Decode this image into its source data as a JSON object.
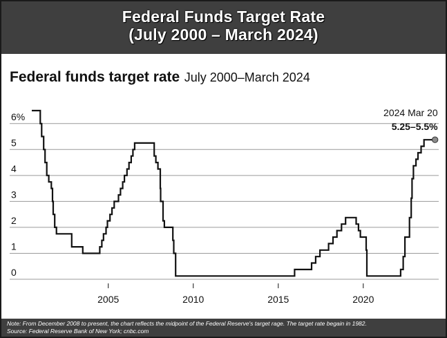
{
  "banner": {
    "line1": "Federal Funds Target Rate",
    "line2": "(July 2000 – March 2024)"
  },
  "heading": {
    "title": "Federal funds target rate",
    "subtitle": "July 2000–March 2024"
  },
  "notes": {
    "note": "Note: From December 2008 to present, the chart reflects the midpoint of the Federal Reserve's target rage. The target rate begain in 1982.",
    "source": "Source: Federal Reserve Bank of New York; cnbc.com"
  },
  "colors": {
    "line": "#111111",
    "grid": "#9a9a9a",
    "marker": "#8a8a8a",
    "banner": "#3f3f3f"
  },
  "chart_data": {
    "type": "line",
    "title": "Federal funds target rate",
    "subtitle": "July 2000–March 2024",
    "xlim": [
      2000.5,
      2024.6
    ],
    "ylim": [
      0,
      6.5
    ],
    "x_ticks": [
      2005,
      2010,
      2015,
      2020
    ],
    "x_tick_labels": [
      "2005",
      "2010",
      "2015",
      "2020"
    ],
    "y_ticks": [
      0,
      1,
      2,
      3,
      4,
      5,
      6
    ],
    "y_tick_labels": [
      "0",
      "1",
      "2",
      "3",
      "4",
      "5",
      "6%"
    ],
    "grid": "horizontal",
    "annotation": {
      "x": 2024.22,
      "y": 5.375,
      "date": "2024 Mar 20",
      "value": "5.25–5.5%"
    },
    "series": [
      {
        "step": true,
        "points": [
          [
            2000.5,
            6.5
          ],
          [
            2001.0,
            6.0
          ],
          [
            2001.08,
            5.5
          ],
          [
            2001.2,
            5.0
          ],
          [
            2001.28,
            4.5
          ],
          [
            2001.38,
            4.0
          ],
          [
            2001.5,
            3.75
          ],
          [
            2001.65,
            3.5
          ],
          [
            2001.72,
            3.0
          ],
          [
            2001.76,
            2.5
          ],
          [
            2001.85,
            2.0
          ],
          [
            2001.95,
            1.75
          ],
          [
            2002.85,
            1.25
          ],
          [
            2003.5,
            1.0
          ],
          [
            2004.5,
            1.25
          ],
          [
            2004.62,
            1.5
          ],
          [
            2004.72,
            1.75
          ],
          [
            2004.87,
            2.0
          ],
          [
            2004.95,
            2.25
          ],
          [
            2005.1,
            2.5
          ],
          [
            2005.22,
            2.75
          ],
          [
            2005.35,
            3.0
          ],
          [
            2005.6,
            3.25
          ],
          [
            2005.72,
            3.5
          ],
          [
            2005.85,
            3.75
          ],
          [
            2005.95,
            4.0
          ],
          [
            2006.1,
            4.25
          ],
          [
            2006.22,
            4.5
          ],
          [
            2006.35,
            4.75
          ],
          [
            2006.45,
            5.0
          ],
          [
            2006.55,
            5.25
          ],
          [
            2007.7,
            4.75
          ],
          [
            2007.8,
            4.5
          ],
          [
            2007.92,
            4.25
          ],
          [
            2008.06,
            3.5
          ],
          [
            2008.08,
            3.0
          ],
          [
            2008.22,
            2.25
          ],
          [
            2008.3,
            2.0
          ],
          [
            2008.8,
            1.5
          ],
          [
            2008.85,
            1.0
          ],
          [
            2008.96,
            0.125
          ],
          [
            2015.96,
            0.375
          ],
          [
            2016.96,
            0.625
          ],
          [
            2017.2,
            0.875
          ],
          [
            2017.45,
            1.125
          ],
          [
            2017.96,
            1.375
          ],
          [
            2018.22,
            1.625
          ],
          [
            2018.45,
            1.875
          ],
          [
            2018.72,
            2.125
          ],
          [
            2018.96,
            2.375
          ],
          [
            2019.58,
            2.125
          ],
          [
            2019.72,
            1.875
          ],
          [
            2019.83,
            1.625
          ],
          [
            2020.17,
            1.125
          ],
          [
            2020.21,
            0.125
          ],
          [
            2022.2,
            0.375
          ],
          [
            2022.35,
            0.875
          ],
          [
            2022.45,
            1.625
          ],
          [
            2022.72,
            2.375
          ],
          [
            2022.82,
            3.125
          ],
          [
            2022.87,
            3.875
          ],
          [
            2022.95,
            4.375
          ],
          [
            2023.1,
            4.625
          ],
          [
            2023.22,
            4.875
          ],
          [
            2023.4,
            5.125
          ],
          [
            2023.57,
            5.375
          ],
          [
            2024.22,
            5.375
          ]
        ]
      }
    ]
  }
}
